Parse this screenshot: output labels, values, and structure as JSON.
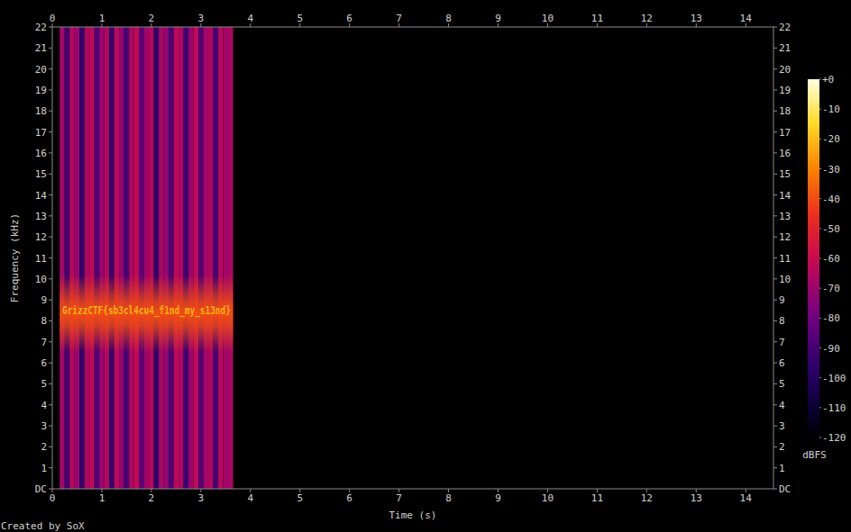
{
  "chart_data": {
    "type": "heatmap",
    "xlabel": "Time (s)",
    "ylabel": "Frequency (kHz)",
    "footer": "Created by SoX",
    "xlim": [
      0,
      14.56
    ],
    "ylim": [
      0,
      22
    ],
    "xticks": [
      0,
      1,
      2,
      3,
      4,
      5,
      6,
      7,
      8,
      9,
      10,
      11,
      12,
      13,
      14
    ],
    "yticks": [
      {
        "value": 0,
        "label": "DC"
      },
      1,
      2,
      3,
      4,
      5,
      6,
      7,
      8,
      9,
      10,
      11,
      12,
      13,
      14,
      15,
      16,
      17,
      18,
      19,
      20,
      21,
      22
    ],
    "edges": [
      0.15,
      0.25,
      0.35,
      0.45,
      0.55,
      0.65,
      0.75,
      0.85,
      0.95,
      1.05,
      1.15,
      1.25,
      1.35,
      1.45,
      1.55,
      1.65,
      1.75,
      1.85,
      1.95,
      2.05,
      2.15,
      2.25,
      2.35,
      2.45,
      2.55,
      2.65,
      2.75,
      2.85,
      2.95,
      3.05,
      3.15,
      3.25,
      3.35,
      3.45,
      3.55,
      3.65
    ],
    "levels": [
      -68,
      -92,
      -64,
      -70,
      -95,
      -66,
      -62,
      -88,
      -70,
      -65,
      -94,
      -63,
      -72,
      -90,
      -66,
      -61,
      -85,
      -69,
      -64,
      -96,
      -67,
      -71,
      -89,
      -63,
      -66,
      -93,
      -70,
      -62,
      -87,
      -68,
      -65,
      -91,
      -64,
      -69,
      -66
    ],
    "band": {
      "range": [
        6.5,
        10.2
      ],
      "level": -40
    },
    "annotation": {
      "text": "GrizzCTF{sb3cl4cu4_f1nd_my_s13nd}",
      "x": [
        0.2,
        3.6
      ],
      "y": 8.5,
      "level": -22
    },
    "colorbar": {
      "label": "dBFS",
      "zlim": [
        -120,
        0
      ],
      "zticks": [
        {
          "value": 0,
          "label": "+0"
        },
        -10,
        -20,
        -30,
        -40,
        -50,
        -60,
        -70,
        -80,
        -90,
        -100,
        -110,
        -120
      ]
    }
  }
}
